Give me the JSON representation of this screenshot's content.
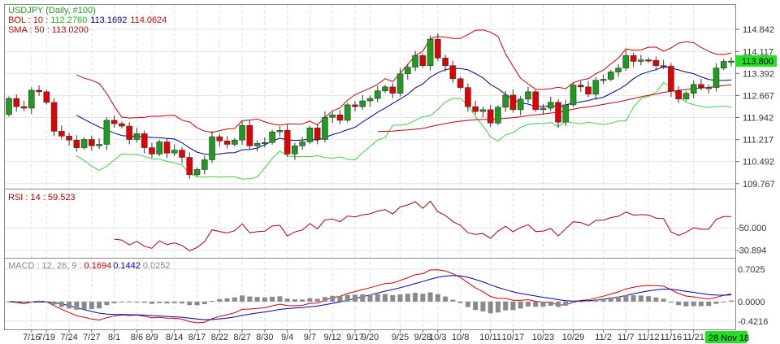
{
  "header": {
    "title": "USDJPY (Daily, #100)",
    "bol_label": "BOL  : 10 : ",
    "bol_lower": "112.2760",
    "bol_mid": "113.1692",
    "bol_upper": "114.0624",
    "sma_label": "SMA : 50 : 113.0200",
    "rsi_label": "RSI  : 14 : 59.523",
    "macd_label": "MACD  : 12, 26, 9 : ",
    "macd_value": "0.1694",
    "macd_signal": "0.1442",
    "macd_hist": "0.0252"
  },
  "current_price_badge": "113.800",
  "current_date_badge": "28 Nov 18",
  "colors": {
    "up": "#1f9b1f",
    "down": "#e30000",
    "bol_upper": "#d00000",
    "bol_mid": "#00008f",
    "bol_lower": "#3ad43a",
    "sma": "#c00000",
    "rsi": "#b00000",
    "macd": "#d00000",
    "signal": "#0000b0",
    "hist": "#8a8a8a",
    "badge": "#22e022"
  },
  "chart_data": {
    "type": "candlestick",
    "symbol": "USDJPY",
    "period": "Daily",
    "price_ticks": [
      "114.842",
      "114.117",
      "113.392",
      "112.667",
      "111.942",
      "111.217",
      "110.492",
      "109.767"
    ],
    "price_range": [
      109.6,
      115.65
    ],
    "rsi_ticks": [
      "50.000",
      "30.894"
    ],
    "rsi_range": [
      24.2,
      82.7
    ],
    "macd_ticks": [
      "0.7025",
      "0.0000",
      "-0.4216"
    ],
    "macd_range": [
      -0.6,
      0.93
    ],
    "first_open": 112.04,
    "closes": [
      112.57,
      112.3,
      112.25,
      112.84,
      112.79,
      112.44,
      111.49,
      111.33,
      111.2,
      110.95,
      111.22,
      111.01,
      111.06,
      111.85,
      111.74,
      111.66,
      111.22,
      111.41,
      110.95,
      110.74,
      111.14,
      110.77,
      110.87,
      110.63,
      110.06,
      110.23,
      110.55,
      111.31,
      111.17,
      111.06,
      111.2,
      111.68,
      111.01,
      111.09,
      111.12,
      111.47,
      111.52,
      110.74,
      111.01,
      111.14,
      111.6,
      111.22,
      111.95,
      112.03,
      111.85,
      112.36,
      112.3,
      112.49,
      112.57,
      112.82,
      112.95,
      112.74,
      113.38,
      113.6,
      113.98,
      113.65,
      114.52,
      113.9,
      113.65,
      113.22,
      112.93,
      112.3,
      112.14,
      112.2,
      111.76,
      112.28,
      112.68,
      112.2,
      112.55,
      112.79,
      112.2,
      112.25,
      112.44,
      111.79,
      112.36,
      113.01,
      112.95,
      112.71,
      113.17,
      113.2,
      113.44,
      113.57,
      113.98,
      113.79,
      113.84,
      113.82,
      113.65,
      113.63,
      112.82,
      112.55,
      112.74,
      113.03,
      112.93,
      112.93,
      113.57,
      113.79,
      113.8
    ],
    "date_labels": [
      {
        "label": "7/16",
        "index": 3
      },
      {
        "label": "7/19",
        "index": 5
      },
      {
        "label": "7/24",
        "index": 8
      },
      {
        "label": "7/27",
        "index": 11
      },
      {
        "label": "8/1",
        "index": 14
      },
      {
        "label": "8/6",
        "index": 17
      },
      {
        "label": "8/9",
        "index": 19
      },
      {
        "label": "8/14",
        "index": 22
      },
      {
        "label": "8/17",
        "index": 25
      },
      {
        "label": "8/22",
        "index": 28
      },
      {
        "label": "8/27",
        "index": 31
      },
      {
        "label": "8/30",
        "index": 34
      },
      {
        "label": "9/4",
        "index": 37
      },
      {
        "label": "9/7",
        "index": 40
      },
      {
        "label": "9/12",
        "index": 43
      },
      {
        "label": "9/17",
        "index": 46
      },
      {
        "label": "9/20",
        "index": 48
      },
      {
        "label": "9/25",
        "index": 52
      },
      {
        "label": "9/28",
        "index": 55
      },
      {
        "label": "10/3",
        "index": 57
      },
      {
        "label": "10/8",
        "index": 60
      },
      {
        "label": "10/11",
        "index": 64
      },
      {
        "label": "10/17",
        "index": 67
      },
      {
        "label": "10/23",
        "index": 71
      },
      {
        "label": "10/29",
        "index": 75
      },
      {
        "label": "11/2",
        "index": 79
      },
      {
        "label": "11/7",
        "index": 82
      },
      {
        "label": "11/12",
        "index": 85
      },
      {
        "label": "11/16",
        "index": 88
      },
      {
        "label": "11/21",
        "index": 91
      }
    ],
    "indicators": {
      "bollinger": {
        "period": 10,
        "k": 2
      },
      "sma": 50,
      "rsi": 14,
      "macd": [
        12,
        26,
        9
      ]
    }
  }
}
